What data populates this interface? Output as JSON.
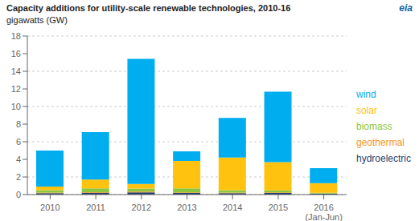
{
  "chart_data": {
    "type": "bar",
    "title": "Capacity additions for utility-scale renewable technologies, 2010-16",
    "subtitle": "gigawatts (GW)",
    "annotations": [
      "eia"
    ],
    "categories": [
      "2010",
      "2011",
      "2012",
      "2013",
      "2014",
      "2015",
      "2016\n(Jan-Jun)"
    ],
    "series": [
      {
        "name": "hydroelectric",
        "color": "#1F3F72",
        "values": [
          0.15,
          0.2,
          0.25,
          0.18,
          0.15,
          0.18,
          0.08
        ]
      },
      {
        "name": "geothermal",
        "color": "#F7941D",
        "values": [
          0.08,
          0.08,
          0.08,
          0.08,
          0.08,
          0.08,
          0.04
        ]
      },
      {
        "name": "biomass",
        "color": "#8DC63F",
        "values": [
          0.28,
          0.42,
          0.35,
          0.45,
          0.28,
          0.22,
          0.08
        ]
      },
      {
        "name": "solar",
        "color": "#FFC20E",
        "values": [
          0.4,
          1.0,
          0.52,
          3.1,
          3.7,
          3.2,
          1.1
        ]
      },
      {
        "name": "wind",
        "color": "#00AEEF",
        "values": [
          4.1,
          5.4,
          14.2,
          1.1,
          4.5,
          8.0,
          1.7
        ]
      }
    ],
    "stacked": true,
    "ylim": [
      0,
      18
    ],
    "yticks": [
      0,
      2,
      4,
      6,
      8,
      10,
      12,
      14,
      16,
      18
    ],
    "grid": true,
    "legend": "right"
  }
}
